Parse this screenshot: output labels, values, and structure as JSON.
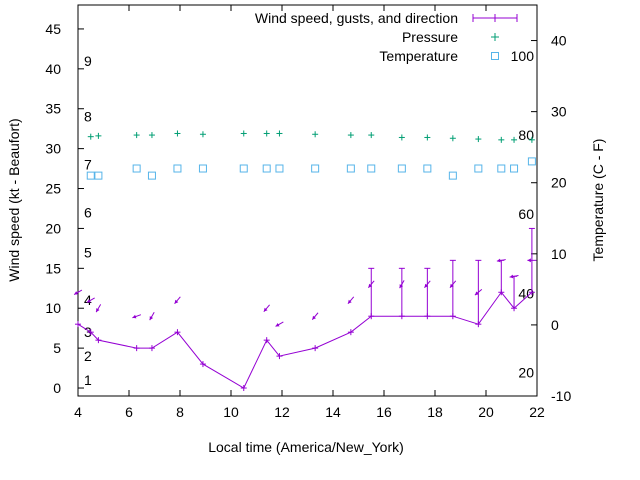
{
  "chart_data": {
    "type": "line",
    "xlabel": "Local time (America/New_York)",
    "ylabel_left": "Wind speed (kt - Beaufort)",
    "ylabel_right": "Temperature (C - F)",
    "xlim": [
      4,
      22
    ],
    "ylim_left": [
      -1,
      48
    ],
    "ylim_right": [
      -10,
      45
    ],
    "x_ticks": [
      4,
      6,
      8,
      10,
      12,
      14,
      16,
      18,
      20,
      22
    ],
    "y_ticks_left": [
      0,
      5,
      10,
      15,
      20,
      25,
      30,
      35,
      40,
      45
    ],
    "y_ticks_right": [
      -10,
      0,
      10,
      20,
      30,
      40
    ],
    "beaufort_labels": [
      {
        "label": "1",
        "kt": 1
      },
      {
        "label": "2",
        "kt": 4
      },
      {
        "label": "3",
        "kt": 7
      },
      {
        "label": "4",
        "kt": 11
      },
      {
        "label": "5",
        "kt": 17
      },
      {
        "label": "6",
        "kt": 22
      },
      {
        "label": "7",
        "kt": 28
      },
      {
        "label": "8",
        "kt": 34
      },
      {
        "label": "9",
        "kt": 41
      }
    ],
    "fahrenheit_labels": [
      {
        "label": "20",
        "c": -6.7
      },
      {
        "label": "40",
        "c": 4.4
      },
      {
        "label": "60",
        "c": 15.6
      },
      {
        "label": "80",
        "c": 26.7
      },
      {
        "label": "100",
        "c": 37.8
      }
    ],
    "grid": false,
    "legend_position": "top-right",
    "series": [
      {
        "name": "Wind speed, gusts, and direction",
        "color": "#9400d3",
        "points": [
          {
            "x": 4.0,
            "y": 8,
            "gust": null,
            "dir": 60
          },
          {
            "x": 4.5,
            "y": 7,
            "gust": null,
            "dir": 60
          },
          {
            "x": 4.8,
            "y": 6,
            "gust": null,
            "dir": 30
          },
          {
            "x": 6.3,
            "y": 5,
            "gust": null,
            "dir": 70
          },
          {
            "x": 6.9,
            "y": 5,
            "gust": null,
            "dir": 30
          },
          {
            "x": 7.9,
            "y": 7,
            "gust": null,
            "dir": 40
          },
          {
            "x": 8.9,
            "y": 3,
            "gust": null,
            "dir": null
          },
          {
            "x": 10.5,
            "y": 0,
            "gust": null,
            "dir": null
          },
          {
            "x": 11.4,
            "y": 6,
            "gust": null,
            "dir": 40
          },
          {
            "x": 11.9,
            "y": 4,
            "gust": null,
            "dir": 60
          },
          {
            "x": 13.3,
            "y": 5,
            "gust": null,
            "dir": 40
          },
          {
            "x": 14.7,
            "y": 7,
            "gust": null,
            "dir": 40
          },
          {
            "x": 15.5,
            "y": 9,
            "gust": 15,
            "dir": 40
          },
          {
            "x": 16.7,
            "y": 9,
            "gust": 15,
            "dir": 30
          },
          {
            "x": 17.7,
            "y": 9,
            "gust": 15,
            "dir": 40
          },
          {
            "x": 18.7,
            "y": 9,
            "gust": 16,
            "dir": 40
          },
          {
            "x": 19.7,
            "y": 8,
            "gust": 16,
            "dir": 50
          },
          {
            "x": 20.6,
            "y": 12,
            "gust": 16,
            "dir": 80
          },
          {
            "x": 21.1,
            "y": 10,
            "gust": 14,
            "dir": 80
          },
          {
            "x": 21.8,
            "y": 12,
            "gust": 20,
            "dir": 90
          }
        ]
      },
      {
        "name": "Pressure",
        "color": "#009e73",
        "axis": "left",
        "x": [
          4.5,
          4.8,
          6.3,
          6.9,
          7.9,
          8.9,
          10.5,
          11.4,
          11.9,
          13.3,
          14.7,
          15.5,
          16.7,
          17.7,
          18.7,
          19.7,
          20.6,
          21.1,
          21.8
        ],
        "y": [
          31.5,
          31.6,
          31.7,
          31.7,
          31.9,
          31.8,
          31.9,
          31.9,
          31.9,
          31.8,
          31.7,
          31.7,
          31.4,
          31.4,
          31.3,
          31.2,
          31.1,
          31.1,
          31.1
        ]
      },
      {
        "name": "Temperature",
        "color": "#56b4e9",
        "axis": "right",
        "x": [
          4.5,
          4.8,
          6.3,
          6.9,
          7.9,
          8.9,
          10.5,
          11.4,
          11.9,
          13.3,
          14.7,
          15.5,
          16.7,
          17.7,
          18.7,
          19.7,
          20.6,
          21.1,
          21.8
        ],
        "y": [
          21,
          21,
          22,
          21,
          22,
          22,
          22,
          22,
          22,
          22,
          22,
          22,
          22,
          22,
          21,
          22,
          22,
          22,
          23
        ]
      }
    ]
  }
}
